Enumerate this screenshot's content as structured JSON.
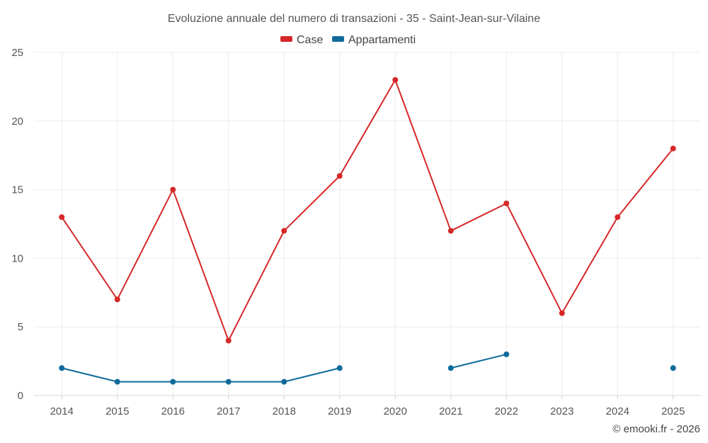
{
  "chart_data": {
    "type": "line",
    "title": "Evoluzione annuale del numero di transazioni - 35 - Saint-Jean-sur-Vilaine",
    "categories": [
      "2014",
      "2015",
      "2016",
      "2017",
      "2018",
      "2019",
      "2020",
      "2021",
      "2022",
      "2023",
      "2024",
      "2025"
    ],
    "series": [
      {
        "name": "Case",
        "color": "#d62728",
        "values": [
          13,
          7,
          15,
          4,
          12,
          16,
          23,
          12,
          14,
          6,
          13,
          18
        ]
      },
      {
        "name": "Appartamenti",
        "color": "#0f6a9c",
        "values": [
          2,
          1,
          1,
          1,
          1,
          2,
          null,
          2,
          3,
          null,
          null,
          2
        ]
      }
    ],
    "ylim": [
      0,
      25
    ],
    "yticks": [
      "0",
      "5",
      "10",
      "15",
      "20",
      "25"
    ],
    "xlabel": "",
    "ylabel": "",
    "grid": true,
    "legend": "top-center"
  },
  "credit": "© emooki.fr - 2026"
}
